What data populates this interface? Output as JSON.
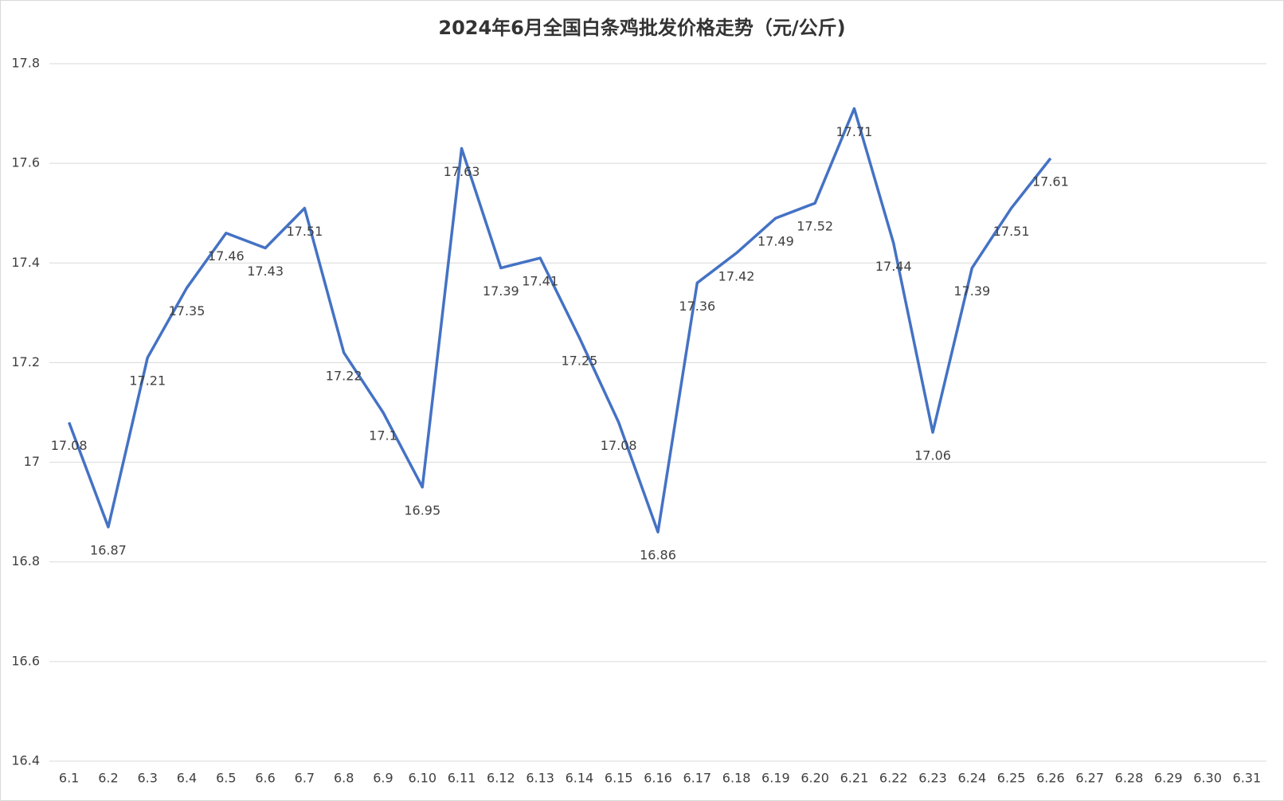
{
  "chart_data": {
    "type": "line",
    "title": "2024年6月全国白条鸡批发价格走势（元/公斤)",
    "categories": [
      "6.1",
      "6.2",
      "6.3",
      "6.4",
      "6.5",
      "6.6",
      "6.7",
      "6.8",
      "6.9",
      "6.10",
      "6.11",
      "6.12",
      "6.13",
      "6.14",
      "6.15",
      "6.16",
      "6.17",
      "6.18",
      "6.19",
      "6.20",
      "6.21",
      "6.22",
      "6.23",
      "6.24",
      "6.25",
      "6.26",
      "6.27",
      "6.28",
      "6.29",
      "6.30",
      "6.31"
    ],
    "values": [
      17.08,
      16.87,
      17.21,
      17.35,
      17.46,
      17.43,
      17.51,
      17.22,
      17.1,
      16.95,
      17.63,
      17.39,
      17.41,
      17.25,
      17.08,
      16.86,
      17.36,
      17.42,
      17.49,
      17.52,
      17.71,
      17.44,
      17.06,
      17.39,
      17.51,
      17.61,
      null,
      null,
      null,
      null,
      null
    ],
    "color": "#4472c4",
    "ylim": [
      16.4,
      17.8
    ],
    "yticks": [
      16.4,
      16.6,
      16.8,
      17,
      17.2,
      17.4,
      17.6,
      17.8
    ],
    "grid": true
  }
}
